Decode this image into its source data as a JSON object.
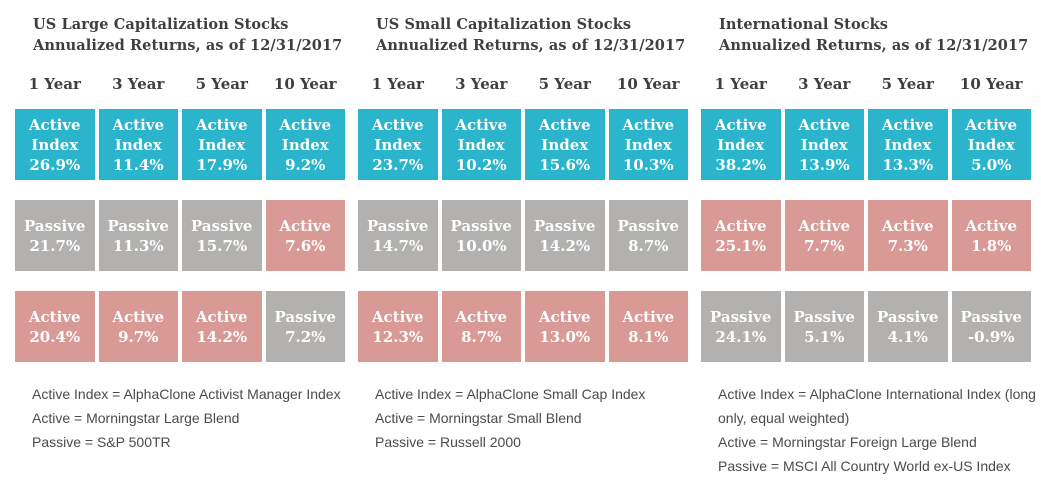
{
  "colors": {
    "active_index_bg": "#2ab5cd",
    "active_bg": "#d99a96",
    "passive_bg": "#b2b1b0",
    "cell_text": "#ffffff",
    "heading_text": "#3f3f3e",
    "footnote_text": "#4b4b4b",
    "background": "#ffffff"
  },
  "panels": [
    {
      "id": "us-large-cap",
      "title_line1": "US Large Capitalization Stocks",
      "title_line2": "Annualized Returns, as of 12/31/2017",
      "columns": [
        "1 Year",
        "3 Year",
        "5 Year",
        "10 Year"
      ],
      "rows": [
        [
          {
            "label": "Active Index",
            "value": "26.9%",
            "kind": "active_index"
          },
          {
            "label": "Active Index",
            "value": "11.4%",
            "kind": "active_index"
          },
          {
            "label": "Active Index",
            "value": "17.9%",
            "kind": "active_index"
          },
          {
            "label": "Active Index",
            "value": "9.2%",
            "kind": "active_index"
          }
        ],
        [
          {
            "label": "Passive",
            "value": "21.7%",
            "kind": "passive"
          },
          {
            "label": "Passive",
            "value": "11.3%",
            "kind": "passive"
          },
          {
            "label": "Passive",
            "value": "15.7%",
            "kind": "passive"
          },
          {
            "label": "Active",
            "value": "7.6%",
            "kind": "active"
          }
        ],
        [
          {
            "label": "Active",
            "value": "20.4%",
            "kind": "active"
          },
          {
            "label": "Active",
            "value": "9.7%",
            "kind": "active"
          },
          {
            "label": "Active",
            "value": "14.2%",
            "kind": "active"
          },
          {
            "label": "Passive",
            "value": "7.2%",
            "kind": "passive"
          }
        ]
      ],
      "footnotes": [
        "Active Index = AlphaClone Activist Manager Index",
        "Active = Morningstar Large Blend",
        "Passive = S&P 500TR"
      ]
    },
    {
      "id": "us-small-cap",
      "title_line1": "US Small Capitalization Stocks",
      "title_line2": "Annualized Returns, as of 12/31/2017",
      "columns": [
        "1 Year",
        "3 Year",
        "5 Year",
        "10 Year"
      ],
      "rows": [
        [
          {
            "label": "Active Index",
            "value": "23.7%",
            "kind": "active_index"
          },
          {
            "label": "Active Index",
            "value": "10.2%",
            "kind": "active_index"
          },
          {
            "label": "Active Index",
            "value": "15.6%",
            "kind": "active_index"
          },
          {
            "label": "Active Index",
            "value": "10.3%",
            "kind": "active_index"
          }
        ],
        [
          {
            "label": "Passive",
            "value": "14.7%",
            "kind": "passive"
          },
          {
            "label": "Passive",
            "value": "10.0%",
            "kind": "passive"
          },
          {
            "label": "Passive",
            "value": "14.2%",
            "kind": "passive"
          },
          {
            "label": "Passive",
            "value": "8.7%",
            "kind": "passive"
          }
        ],
        [
          {
            "label": "Active",
            "value": "12.3%",
            "kind": "active"
          },
          {
            "label": "Active",
            "value": "8.7%",
            "kind": "active"
          },
          {
            "label": "Active",
            "value": "13.0%",
            "kind": "active"
          },
          {
            "label": "Active",
            "value": "8.1%",
            "kind": "active"
          }
        ]
      ],
      "footnotes": [
        "Active Index = AlphaClone Small Cap Index",
        "Active = Morningstar Small Blend",
        "Passive = Russell 2000"
      ]
    },
    {
      "id": "international",
      "title_line1": "International Stocks",
      "title_line2": "Annualized Returns, as of 12/31/2017",
      "columns": [
        "1 Year",
        "3 Year",
        "5 Year",
        "10 Year"
      ],
      "rows": [
        [
          {
            "label": "Active Index",
            "value": "38.2%",
            "kind": "active_index"
          },
          {
            "label": "Active Index",
            "value": "13.9%",
            "kind": "active_index"
          },
          {
            "label": "Active Index",
            "value": "13.3%",
            "kind": "active_index"
          },
          {
            "label": "Active Index",
            "value": "5.0%",
            "kind": "active_index"
          }
        ],
        [
          {
            "label": "Active",
            "value": "25.1%",
            "kind": "active"
          },
          {
            "label": "Active",
            "value": "7.7%",
            "kind": "active"
          },
          {
            "label": "Active",
            "value": "7.3%",
            "kind": "active"
          },
          {
            "label": "Active",
            "value": "1.8%",
            "kind": "active"
          }
        ],
        [
          {
            "label": "Passive",
            "value": "24.1%",
            "kind": "passive"
          },
          {
            "label": "Passive",
            "value": "5.1%",
            "kind": "passive"
          },
          {
            "label": "Passive",
            "value": "4.1%",
            "kind": "passive"
          },
          {
            "label": "Passive",
            "value": "-0.9%",
            "kind": "passive"
          }
        ]
      ],
      "footnotes": [
        "Active Index = AlphaClone International Index (long only, equal weighted)",
        "Active = Morningstar Foreign Large Blend",
        "Passive = MSCI All Country World ex-US Index"
      ]
    }
  ],
  "chart_data": [
    {
      "type": "table",
      "title": "US Large Capitalization Stocks Annualized Returns, as of 12/31/2017",
      "columns": [
        "1 Year",
        "3 Year",
        "5 Year",
        "10 Year"
      ],
      "unit": "%",
      "note": "cells are ranked top-to-bottom by return within each column",
      "series": [
        {
          "name": "Active Index (AlphaClone Activist Manager Index)",
          "values": [
            26.9,
            11.4,
            17.9,
            9.2
          ]
        },
        {
          "name": "Active (Morningstar Large Blend)",
          "values": [
            20.4,
            9.7,
            14.2,
            7.6
          ]
        },
        {
          "name": "Passive (S&P 500TR)",
          "values": [
            21.7,
            11.3,
            15.7,
            7.2
          ]
        }
      ]
    },
    {
      "type": "table",
      "title": "US Small Capitalization Stocks Annualized Returns, as of 12/31/2017",
      "columns": [
        "1 Year",
        "3 Year",
        "5 Year",
        "10 Year"
      ],
      "unit": "%",
      "note": "cells are ranked top-to-bottom by return within each column",
      "series": [
        {
          "name": "Active Index (AlphaClone Small Cap Index)",
          "values": [
            23.7,
            10.2,
            15.6,
            10.3
          ]
        },
        {
          "name": "Active (Morningstar Small Blend)",
          "values": [
            12.3,
            8.7,
            13.0,
            8.1
          ]
        },
        {
          "name": "Passive (Russell 2000)",
          "values": [
            14.7,
            10.0,
            14.2,
            8.7
          ]
        }
      ]
    },
    {
      "type": "table",
      "title": "International Stocks Annualized Returns, as of 12/31/2017",
      "columns": [
        "1 Year",
        "3 Year",
        "5 Year",
        "10 Year"
      ],
      "unit": "%",
      "note": "cells are ranked top-to-bottom by return within each column",
      "series": [
        {
          "name": "Active Index (AlphaClone International Index, long only, equal weighted)",
          "values": [
            38.2,
            13.9,
            13.3,
            5.0
          ]
        },
        {
          "name": "Active (Morningstar Foreign Large Blend)",
          "values": [
            25.1,
            7.7,
            7.3,
            1.8
          ]
        },
        {
          "name": "Passive (MSCI All Country World ex-US Index)",
          "values": [
            24.1,
            5.1,
            4.1,
            -0.9
          ]
        }
      ]
    }
  ]
}
